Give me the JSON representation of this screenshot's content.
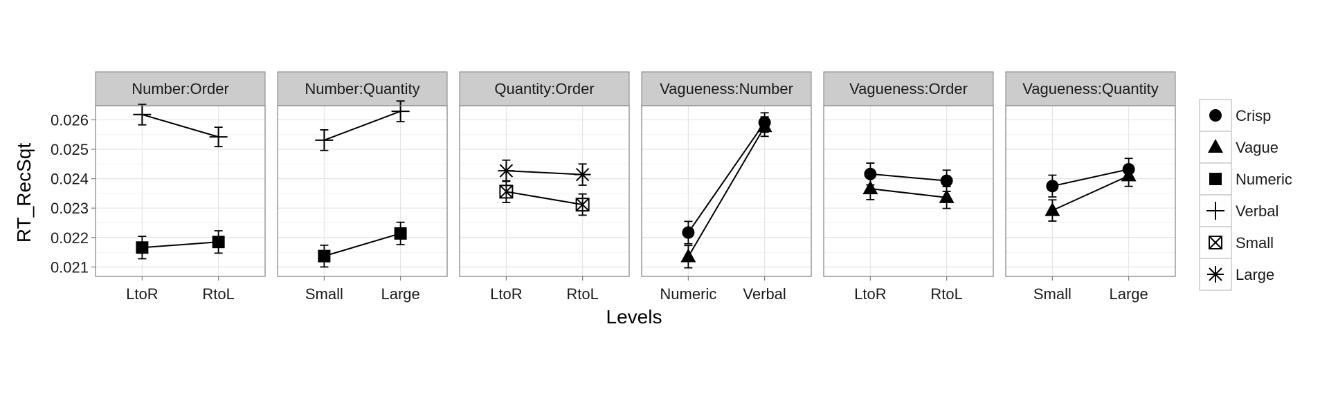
{
  "chart_data": {
    "type": "line",
    "xlabel": "Levels",
    "ylabel": "RT_RecSqt",
    "ylim": [
      0.02068,
      0.02648
    ],
    "yticks": [
      0.021,
      0.022,
      0.023,
      0.024,
      0.025,
      0.026
    ],
    "ytick_labels": [
      "0.021",
      "0.022",
      "0.023",
      "0.024",
      "0.025",
      "0.026"
    ],
    "grid": true,
    "legend_position": "right",
    "legend": [
      {
        "label": "Crisp",
        "shape": "circle"
      },
      {
        "label": "Vague",
        "shape": "triangle"
      },
      {
        "label": "Numeric",
        "shape": "square"
      },
      {
        "label": "Verbal",
        "shape": "plus"
      },
      {
        "label": "Small",
        "shape": "boxcross"
      },
      {
        "label": "Large",
        "shape": "asterisk"
      }
    ],
    "panels": [
      {
        "title": "Number:Order",
        "categories": [
          "LtoR",
          "RtoL"
        ],
        "series": [
          {
            "name": "Verbal",
            "shape": "plus",
            "values": [
              0.02618,
              0.02542
            ],
            "errors": [
              0.00035,
              0.00033
            ]
          },
          {
            "name": "Numeric",
            "shape": "square",
            "values": [
              0.02166,
              0.02185
            ],
            "errors": [
              0.00038,
              0.00038
            ]
          }
        ]
      },
      {
        "title": "Number:Quantity",
        "categories": [
          "Small",
          "Large"
        ],
        "series": [
          {
            "name": "Verbal",
            "shape": "plus",
            "values": [
              0.02531,
              0.02629
            ],
            "errors": [
              0.00035,
              0.00035
            ]
          },
          {
            "name": "Numeric",
            "shape": "square",
            "values": [
              0.02137,
              0.02214
            ],
            "errors": [
              0.00037,
              0.00038
            ]
          }
        ]
      },
      {
        "title": "Quantity:Order",
        "categories": [
          "LtoR",
          "RtoL"
        ],
        "series": [
          {
            "name": "Large",
            "shape": "asterisk",
            "values": [
              0.02427,
              0.02414
            ],
            "errors": [
              0.00036,
              0.00036
            ]
          },
          {
            "name": "Small",
            "shape": "boxcross",
            "values": [
              0.02356,
              0.02312
            ],
            "errors": [
              0.00037,
              0.00036
            ]
          }
        ]
      },
      {
        "title": "Vagueness:Number",
        "categories": [
          "Numeric",
          "Verbal"
        ],
        "series": [
          {
            "name": "Crisp",
            "shape": "circle",
            "values": [
              0.02217,
              0.02591
            ],
            "errors": [
              0.00038,
              0.00033
            ]
          },
          {
            "name": "Vague",
            "shape": "triangle",
            "values": [
              0.02135,
              0.02577
            ],
            "errors": [
              0.00038,
              0.00033
            ]
          }
        ]
      },
      {
        "title": "Vagueness:Order",
        "categories": [
          "LtoR",
          "RtoL"
        ],
        "series": [
          {
            "name": "Crisp",
            "shape": "circle",
            "values": [
              0.02416,
              0.02393
            ],
            "errors": [
              0.00037,
              0.00036
            ]
          },
          {
            "name": "Vague",
            "shape": "triangle",
            "values": [
              0.02366,
              0.02336
            ],
            "errors": [
              0.00037,
              0.00037
            ]
          }
        ]
      },
      {
        "title": "Vagueness:Quantity",
        "categories": [
          "Small",
          "Large"
        ],
        "series": [
          {
            "name": "Crisp",
            "shape": "circle",
            "values": [
              0.02375,
              0.02432
            ],
            "errors": [
              0.00037,
              0.00037
            ]
          },
          {
            "name": "Vague",
            "shape": "triangle",
            "values": [
              0.02292,
              0.0241
            ],
            "errors": [
              0.00036,
              0.00036
            ]
          }
        ]
      }
    ]
  }
}
